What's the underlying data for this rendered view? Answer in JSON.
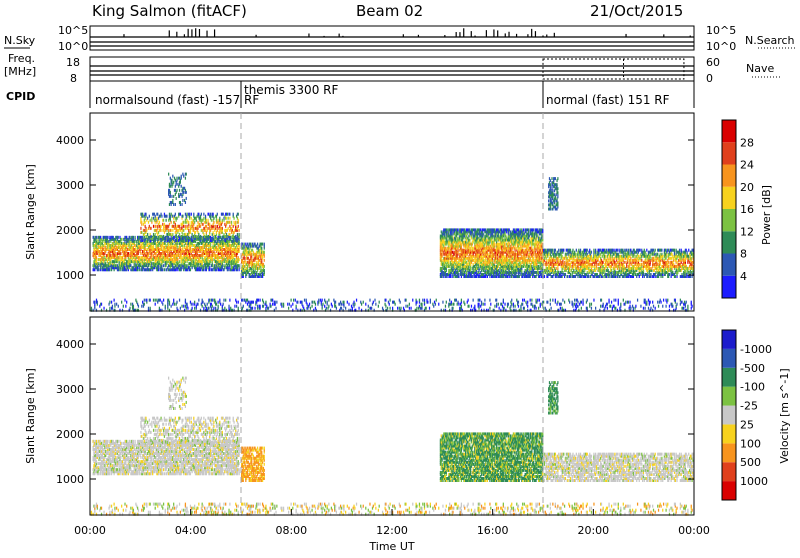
{
  "header": {
    "station": "King Salmon (fitACF)",
    "beam": "Beam 02",
    "date": "21/Oct/2015"
  },
  "summary_panels": {
    "nsky_label": "N.Sky",
    "nsky_ticks": [
      "10^5",
      "10^0"
    ],
    "nsearch_label": "N.Search",
    "nsearch_ticks": [
      "10^5",
      "10^0"
    ],
    "freq_label_line1": "Freq.",
    "freq_label_line2": "[MHz]",
    "freq_ticks": [
      "18",
      "8"
    ],
    "nave_label": "Nave",
    "nave_ticks": [
      "60",
      "0"
    ],
    "cpid_label": "CPID",
    "cpid_segments": [
      {
        "label": "normalsound (fast) -157 RF",
        "start_hour": 0
      },
      {
        "label": "themis 3300 RF",
        "start_hour": 6
      },
      {
        "label": "normal (fast) 151 RF",
        "start_hour": 18
      }
    ]
  },
  "chart_data": [
    {
      "type": "heatmap",
      "quantity": "power",
      "ylabel": "Slant Range [km]",
      "xlabel": "",
      "xlim_hours": [
        0,
        24
      ],
      "ylim": [
        200,
        4600
      ],
      "yticks": [
        1000,
        2000,
        3000,
        4000
      ],
      "colorbar": {
        "label": "Power [dB]",
        "ticks": [
          "4",
          "8",
          "12",
          "16",
          "20",
          "24",
          "28"
        ],
        "colors": [
          "#1c1cff",
          "#2c58b4",
          "#2e8b57",
          "#7cc242",
          "#f7d21e",
          "#f7941e",
          "#e0401c",
          "#d90000"
        ]
      },
      "scatter_blobs": [
        {
          "t0": 0.1,
          "t1": 5.9,
          "r0": 1150,
          "r1": 1900,
          "density": 0.7
        },
        {
          "t0": 2.0,
          "t1": 5.9,
          "r0": 1800,
          "r1": 2400,
          "density": 0.35
        },
        {
          "t0": 3.1,
          "t1": 3.8,
          "r0": 2600,
          "r1": 3300,
          "density": 0.25
        },
        {
          "t0": 6.0,
          "t1": 6.9,
          "r0": 1000,
          "r1": 1750,
          "density": 0.55
        },
        {
          "t0": 13.9,
          "t1": 18.0,
          "r0": 1000,
          "r1": 2050,
          "density": 0.75
        },
        {
          "t0": 18.0,
          "t1": 24.0,
          "r0": 1000,
          "r1": 1600,
          "density": 0.6
        },
        {
          "t0": 18.2,
          "t1": 18.6,
          "r0": 2500,
          "r1": 3200,
          "density": 0.5
        },
        {
          "t0": 0.0,
          "t1": 24.0,
          "r0": 250,
          "r1": 480,
          "density": 0.18
        }
      ]
    },
    {
      "type": "heatmap",
      "quantity": "velocity",
      "ylabel": "Slant Range [km]",
      "xlabel": "Time UT",
      "xlim_hours": [
        0,
        24
      ],
      "ylim": [
        200,
        4600
      ],
      "yticks": [
        1000,
        2000,
        3000,
        4000
      ],
      "xticks": [
        "00:00",
        "04:00",
        "08:00",
        "12:00",
        "16:00",
        "20:00",
        "00:00"
      ],
      "colorbar": {
        "label": "Velocity [m s^-1]",
        "ticks": [
          "1000",
          "500",
          "100",
          "25",
          "-25",
          "-100",
          "-500",
          "-1000"
        ],
        "colors": [
          "#1c1ccc",
          "#2c58b4",
          "#2e8b57",
          "#7cc242",
          "#c8c8c8",
          "#f7d21e",
          "#f7941e",
          "#e0401c",
          "#d90000"
        ]
      }
    }
  ]
}
